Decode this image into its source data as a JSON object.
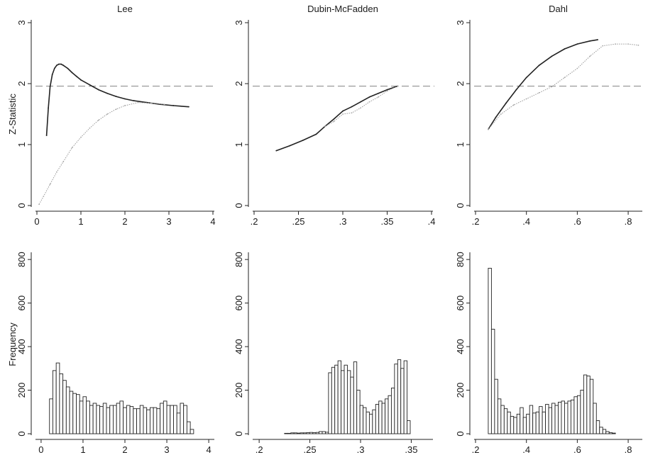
{
  "chart_data": [
    {
      "type": "scatter",
      "title": "Lee",
      "ylabel": "Z-Statistic",
      "xlim": [
        0,
        4
      ],
      "ylim": [
        0,
        3
      ],
      "xticks": [
        "0",
        "1",
        "2",
        "3",
        "4"
      ],
      "yticks": [
        "0",
        "1",
        "2",
        "3"
      ],
      "reference_line": {
        "y": 1.96,
        "style": "dashed"
      },
      "series": [
        {
          "points": [
            [
              0.22,
              1.15
            ],
            [
              0.26,
              1.6
            ],
            [
              0.3,
              1.95
            ],
            [
              0.35,
              2.15
            ],
            [
              0.4,
              2.25
            ],
            [
              0.45,
              2.3
            ],
            [
              0.5,
              2.32
            ],
            [
              0.55,
              2.32
            ],
            [
              0.6,
              2.3
            ],
            [
              0.7,
              2.25
            ],
            [
              0.8,
              2.18
            ],
            [
              0.9,
              2.12
            ],
            [
              1.0,
              2.06
            ],
            [
              1.2,
              1.98
            ],
            [
              1.4,
              1.9
            ],
            [
              1.6,
              1.84
            ],
            [
              1.8,
              1.79
            ],
            [
              2.0,
              1.75
            ],
            [
              2.2,
              1.72
            ],
            [
              2.5,
              1.69
            ],
            [
              2.8,
              1.66
            ],
            [
              3.1,
              1.64
            ],
            [
              3.45,
              1.62
            ]
          ]
        },
        {
          "points": [
            [
              0.05,
              0.02
            ],
            [
              0.15,
              0.15
            ],
            [
              0.3,
              0.35
            ],
            [
              0.45,
              0.55
            ],
            [
              0.6,
              0.72
            ],
            [
              0.8,
              0.95
            ],
            [
              1.0,
              1.12
            ],
            [
              1.2,
              1.27
            ],
            [
              1.4,
              1.4
            ],
            [
              1.6,
              1.5
            ],
            [
              1.8,
              1.58
            ],
            [
              2.0,
              1.64
            ],
            [
              2.3,
              1.69
            ],
            [
              2.6,
              1.68
            ],
            [
              2.9,
              1.66
            ]
          ]
        }
      ]
    },
    {
      "type": "scatter",
      "title": "Dubin-McFadden",
      "xlim": [
        0.2,
        0.4
      ],
      "ylim": [
        0,
        3
      ],
      "xticks": [
        ".2",
        ".25",
        ".3",
        ".35",
        ".4"
      ],
      "yticks": [
        "0",
        "1",
        "2",
        "3"
      ],
      "reference_line": {
        "y": 1.96,
        "style": "dashed"
      },
      "series": [
        {
          "points": [
            [
              0.225,
              0.9
            ],
            [
              0.24,
              0.98
            ],
            [
              0.255,
              1.07
            ],
            [
              0.27,
              1.17
            ],
            [
              0.28,
              1.3
            ],
            [
              0.29,
              1.42
            ],
            [
              0.3,
              1.55
            ],
            [
              0.31,
              1.62
            ],
            [
              0.32,
              1.7
            ],
            [
              0.33,
              1.78
            ],
            [
              0.34,
              1.84
            ],
            [
              0.35,
              1.9
            ],
            [
              0.362,
              1.96
            ]
          ]
        },
        {
          "points": [
            [
              0.28,
              1.3
            ],
            [
              0.29,
              1.38
            ],
            [
              0.3,
              1.5
            ],
            [
              0.31,
              1.52
            ],
            [
              0.32,
              1.6
            ],
            [
              0.33,
              1.7
            ],
            [
              0.34,
              1.78
            ],
            [
              0.35,
              1.88
            ],
            [
              0.362,
              1.96
            ]
          ]
        }
      ]
    },
    {
      "type": "scatter",
      "title": "Dahl",
      "xlim": [
        0.2,
        0.85
      ],
      "ylim": [
        0,
        3
      ],
      "xticks": [
        ".2",
        ".4",
        ".6",
        ".8"
      ],
      "yticks": [
        "0",
        "1",
        "2",
        "3"
      ],
      "reference_line": {
        "y": 1.96,
        "style": "dashed"
      },
      "series": [
        {
          "points": [
            [
              0.25,
              1.25
            ],
            [
              0.28,
              1.45
            ],
            [
              0.32,
              1.68
            ],
            [
              0.36,
              1.9
            ],
            [
              0.4,
              2.1
            ],
            [
              0.45,
              2.3
            ],
            [
              0.5,
              2.45
            ],
            [
              0.55,
              2.57
            ],
            [
              0.6,
              2.65
            ],
            [
              0.65,
              2.7
            ],
            [
              0.68,
              2.72
            ]
          ]
        },
        {
          "points": [
            [
              0.25,
              1.25
            ],
            [
              0.3,
              1.5
            ],
            [
              0.35,
              1.65
            ],
            [
              0.4,
              1.75
            ],
            [
              0.45,
              1.85
            ],
            [
              0.5,
              1.95
            ],
            [
              0.55,
              2.1
            ],
            [
              0.6,
              2.25
            ],
            [
              0.65,
              2.45
            ],
            [
              0.7,
              2.62
            ],
            [
              0.75,
              2.65
            ],
            [
              0.8,
              2.65
            ],
            [
              0.84,
              2.63
            ]
          ]
        }
      ]
    },
    {
      "type": "bar",
      "ylabel": "Frequency",
      "xlim": [
        -0.1,
        4.1
      ],
      "ylim": [
        0,
        820
      ],
      "xticks": [
        "0",
        "1",
        "2",
        "3",
        "4"
      ],
      "yticks": [
        "0",
        "200",
        "400",
        "600",
        "800"
      ],
      "bin_start": 0.2,
      "bin_width": 0.08,
      "values": [
        160,
        290,
        325,
        275,
        245,
        215,
        195,
        185,
        180,
        150,
        170,
        150,
        130,
        140,
        130,
        125,
        140,
        120,
        130,
        130,
        140,
        150,
        120,
        130,
        125,
        115,
        115,
        130,
        120,
        110,
        120,
        120,
        115,
        140,
        150,
        130,
        130,
        130,
        95,
        140,
        130,
        55,
        20
      ]
    },
    {
      "type": "bar",
      "xlim": [
        0.195,
        0.37
      ],
      "ylim": [
        0,
        820
      ],
      "xticks": [
        ".2",
        ".25",
        ".3",
        ".35"
      ],
      "yticks": [
        "0",
        "200",
        "400",
        "600",
        "800"
      ],
      "bin_start": 0.225,
      "bin_width": 0.0031,
      "values": [
        2,
        2,
        4,
        4,
        3,
        4,
        4,
        5,
        6,
        5,
        6,
        10,
        10,
        7,
        280,
        305,
        315,
        335,
        290,
        315,
        290,
        260,
        330,
        200,
        130,
        120,
        100,
        90,
        110,
        135,
        150,
        140,
        160,
        175,
        210,
        320,
        340,
        300,
        335,
        60
      ]
    },
    {
      "type": "bar",
      "xlim": [
        0.2,
        0.85
      ],
      "ylim": [
        0,
        820
      ],
      "xticks": [
        ".2",
        ".4",
        ".6",
        ".8"
      ],
      "yticks": [
        "0",
        "200",
        "400",
        "600",
        "800"
      ],
      "bin_start": 0.25,
      "bin_width": 0.0125,
      "values": [
        760,
        480,
        250,
        160,
        130,
        115,
        100,
        80,
        75,
        90,
        120,
        75,
        90,
        130,
        95,
        100,
        125,
        100,
        135,
        120,
        140,
        130,
        145,
        150,
        140,
        150,
        155,
        170,
        175,
        200,
        270,
        265,
        250,
        140,
        60,
        30,
        20,
        10,
        5,
        3
      ]
    }
  ]
}
